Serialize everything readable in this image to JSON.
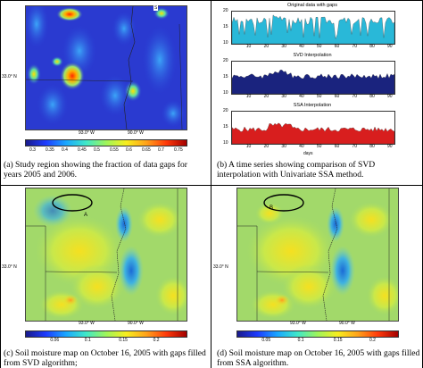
{
  "panel_a": {
    "caption": "(a) Study region showing the fraction of data gaps for years 2005 and 2006.",
    "lat_label": "33.0° N",
    "lon_labels": [
      "93.0° W",
      "90.0° W"
    ],
    "colorbar_ticks": [
      "0.3",
      "0.35",
      "0.4",
      "0.45",
      "0.5",
      "0.55",
      "0.6",
      "0.65",
      "0.7",
      "0.75"
    ],
    "legend_mark": "S"
  },
  "panel_b": {
    "caption": "(b) A time series showing comparison of SVD interpolation with Univariate SSA method.",
    "plots": [
      {
        "title": "Original data with gaps",
        "color": "#29b8d8",
        "yticks": [
          "20",
          "15",
          "10"
        ]
      },
      {
        "title": "SVD Interpolation",
        "color": "#1a237e",
        "yticks": [
          "20",
          "15",
          "10"
        ]
      },
      {
        "title": "SSA Interpolation",
        "color": "#d81e1e",
        "yticks": [
          "20",
          "15",
          "10"
        ]
      }
    ],
    "xticks": [
      "10",
      "20",
      "30",
      "40",
      "50",
      "60",
      "70",
      "80",
      "90"
    ],
    "xlabel": "days"
  },
  "panel_c": {
    "caption": "(c) Soil moisture map on October 16, 2005 with gaps filled from SVD algorithm;",
    "region_label": "A",
    "lat_label": "33.0° N",
    "lon_labels": [
      "93.0° W",
      "90.0° W"
    ],
    "colorbar_ticks": [
      "0.06",
      "0.1",
      "0.15",
      "0.2"
    ]
  },
  "panel_d": {
    "caption": "(d) Soil moisture map on October 16, 2005 with gaps filled from SSA algorithm.",
    "region_label": "B",
    "lat_label": "33.0° N",
    "lon_labels": [
      "93.0° W",
      "90.0° W"
    ],
    "colorbar_ticks": [
      "0.05",
      "0.1",
      "0.15",
      "0.2"
    ]
  }
}
